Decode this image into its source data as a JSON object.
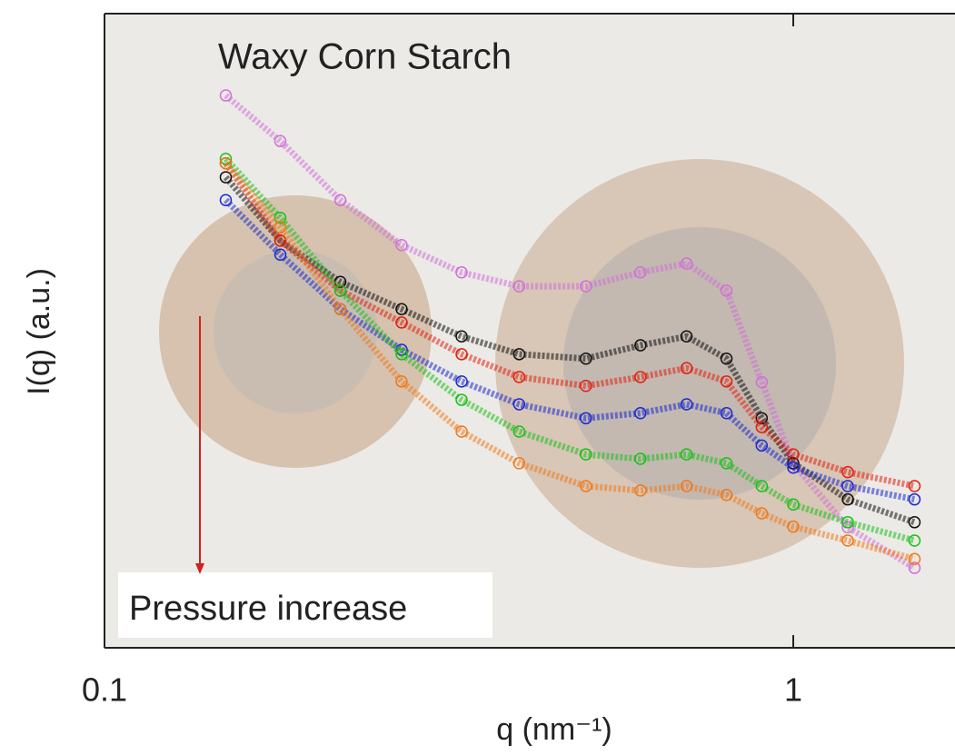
{
  "chart_data": {
    "type": "scatter",
    "title": "Waxy Corn Starch",
    "xlabel": "q (nm⁻¹)",
    "ylabel": "I(q) (a.u.)",
    "annotation": "Pressure increase",
    "xscale": "log",
    "x": [
      0.15,
      0.18,
      0.22,
      0.27,
      0.33,
      0.4,
      0.5,
      0.6,
      0.7,
      0.8,
      0.9,
      1.0,
      1.2,
      1.5
    ],
    "series": [
      {
        "color": "#d070d8",
        "values": [
          87.1,
          79.9,
          70.6,
          63.5,
          59.2,
          57.0,
          57.0,
          59.2,
          60.6,
          56.3,
          41.9,
          29.0,
          19.0,
          12.6
        ]
      },
      {
        "color": "#111111",
        "values": [
          74.2,
          64.2,
          57.7,
          53.4,
          49.1,
          46.3,
          45.6,
          47.7,
          49.1,
          45.6,
          36.2,
          29.1,
          23.4,
          19.8
        ]
      },
      {
        "color": "#e02010",
        "values": [
          76.4,
          64.2,
          56.3,
          51.3,
          46.3,
          42.7,
          41.3,
          42.7,
          44.1,
          42.0,
          34.8,
          30.5,
          27.7,
          25.5
        ]
      },
      {
        "color": "#1a2ad0",
        "values": [
          70.6,
          62.0,
          53.4,
          47.0,
          42.0,
          38.4,
          36.2,
          37.0,
          38.4,
          37.0,
          31.9,
          28.4,
          25.5,
          23.4
        ]
      },
      {
        "color": "#18c018",
        "values": [
          77.1,
          67.8,
          56.3,
          46.3,
          39.1,
          34.1,
          30.5,
          29.8,
          30.5,
          29.1,
          25.5,
          22.6,
          19.8,
          16.9
        ]
      },
      {
        "color": "#f07818",
        "values": [
          76.4,
          66.3,
          53.4,
          42.0,
          34.1,
          29.1,
          25.5,
          24.8,
          25.5,
          24.1,
          21.2,
          19.1,
          16.9,
          14.0
        ]
      }
    ],
    "xlim": [
      0.1,
      1.717
    ],
    "xticks": [
      0.1,
      1
    ],
    "ylim": [
      0,
      100
    ]
  }
}
